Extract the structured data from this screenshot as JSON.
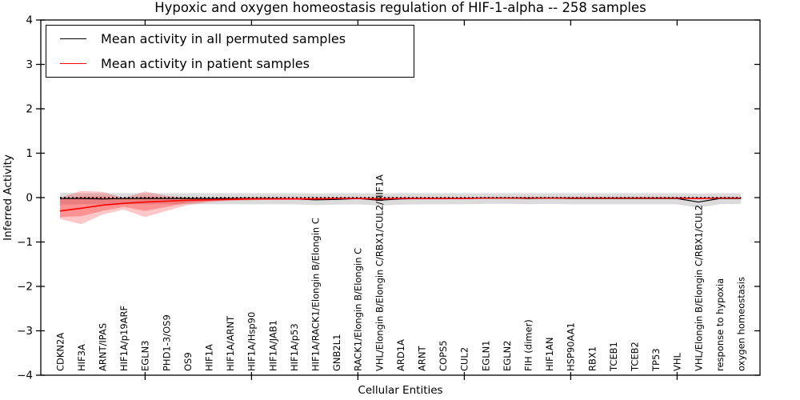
{
  "title": "Hypoxic and oxygen homeostasis regulation of HIF-1-alpha -- 258 samples",
  "axes": {
    "xlabel": "Cellular Entities",
    "ylabel": "Inferred Activity",
    "ytick_labels": [
      "4",
      "3",
      "2",
      "1",
      "0",
      "−1",
      "−2",
      "−3",
      "−4"
    ],
    "ytick_values": [
      4,
      3,
      2,
      1,
      0,
      -1,
      -2,
      -3,
      -4
    ]
  },
  "legend": {
    "entries": [
      {
        "label": "Mean activity in all permuted samples",
        "color": "#000000"
      },
      {
        "label": "Mean activity in patient samples",
        "color": "#ff0000"
      }
    ]
  },
  "chart_data": {
    "type": "line",
    "title": "Hypoxic and oxygen homeostasis regulation of HIF-1-alpha -- 258 samples",
    "xlabel": "Cellular Entities",
    "ylabel": "Inferred Activity",
    "ylim": [
      -4,
      4
    ],
    "grid": false,
    "legend_position": "upper left",
    "categories": [
      "CDKN2A",
      "HIF3A",
      "ARNT/IPAS",
      "HIF1A/p19ARF",
      "EGLN3",
      "PHD1-3/OS9",
      "OS9",
      "HIF1A",
      "HIF1A/ARNT",
      "HIF1A/Hsp90",
      "HIF1A/JAB1",
      "HIF1A/p53",
      "HIF1A/RACK1/Elongin B/Elongin C",
      "GNB2L1",
      "RACK1/Elongin B/Elongin C",
      "VHL/Elongin B/Elongin C/RBX1/CUL2/HIF1A",
      "ARD1A",
      "ARNT",
      "COPS5",
      "CUL2",
      "EGLN1",
      "EGLN2",
      "FIH (dimer)",
      "HIF1AN",
      "HSP90AA1",
      "RBX1",
      "TCEB1",
      "TCEB2",
      "TP53",
      "VHL",
      "VHL/Elongin B/Elongin C/RBX1/CUL2",
      "response to hypoxia",
      "oxygen homeostasis"
    ],
    "x_major_tick_indices": [
      4,
      9,
      14,
      19,
      24,
      29
    ],
    "zero_line": {
      "y": 0,
      "style": "dotted",
      "color": "#000000"
    },
    "series": [
      {
        "name": "Mean activity in all permuted samples",
        "color": "#000000",
        "values": [
          -0.02,
          -0.02,
          -0.03,
          -0.02,
          -0.02,
          -0.02,
          -0.02,
          -0.02,
          -0.02,
          -0.02,
          -0.02,
          -0.03,
          -0.05,
          -0.04,
          -0.02,
          -0.06,
          -0.03,
          -0.02,
          -0.02,
          -0.02,
          -0.01,
          -0.01,
          -0.02,
          -0.01,
          -0.02,
          -0.02,
          -0.02,
          -0.02,
          -0.02,
          -0.02,
          -0.1,
          -0.02,
          -0.02
        ]
      },
      {
        "name": "Mean activity in patient samples",
        "color": "#ff0000",
        "values": [
          -0.3,
          -0.24,
          -0.17,
          -0.13,
          -0.1,
          -0.08,
          -0.06,
          -0.05,
          -0.04,
          -0.03,
          -0.03,
          -0.03,
          -0.03,
          -0.02,
          -0.02,
          -0.03,
          -0.02,
          -0.02,
          -0.02,
          -0.02,
          -0.01,
          -0.01,
          -0.01,
          -0.01,
          -0.01,
          -0.01,
          -0.01,
          -0.01,
          -0.01,
          -0.01,
          -0.02,
          -0.01,
          -0.01
        ]
      }
    ],
    "bands": [
      {
        "name": "permuted-samples-range",
        "color": "rgba(125,125,125,0.28)",
        "upper": [
          0.11,
          0.1,
          0.1,
          0.1,
          0.1,
          0.1,
          0.1,
          0.1,
          0.1,
          0.1,
          0.1,
          0.1,
          0.09,
          0.1,
          0.1,
          0.09,
          0.1,
          0.1,
          0.1,
          0.1,
          0.1,
          0.1,
          0.1,
          0.1,
          0.1,
          0.1,
          0.1,
          0.1,
          0.1,
          0.1,
          0.09,
          0.1,
          0.1
        ],
        "lower": [
          -0.16,
          -0.15,
          -0.15,
          -0.15,
          -0.15,
          -0.15,
          -0.15,
          -0.15,
          -0.15,
          -0.15,
          -0.15,
          -0.15,
          -0.17,
          -0.16,
          -0.15,
          -0.18,
          -0.16,
          -0.15,
          -0.15,
          -0.15,
          -0.14,
          -0.14,
          -0.15,
          -0.14,
          -0.15,
          -0.15,
          -0.15,
          -0.15,
          -0.15,
          -0.15,
          -0.23,
          -0.15,
          -0.14
        ]
      },
      {
        "name": "patient-samples-range-outer",
        "color": "rgba(255,0,0,0.22)",
        "upper": [
          0.0,
          0.15,
          0.13,
          -0.01,
          0.14,
          0.04,
          0.0,
          -0.01,
          0.0,
          0.01,
          0.01,
          0.01,
          0.01,
          0.01,
          0.01,
          0.01,
          0.01,
          0.01,
          0.01,
          0.01,
          0.01,
          0.01,
          0.01,
          0.01,
          0.01,
          0.01,
          0.01,
          0.01,
          0.01,
          0.01,
          0.01,
          0.01,
          0.01
        ],
        "lower": [
          -0.48,
          -0.6,
          -0.38,
          -0.27,
          -0.44,
          -0.3,
          -0.17,
          -0.1,
          -0.07,
          -0.06,
          -0.05,
          -0.05,
          -0.05,
          -0.04,
          -0.04,
          -0.05,
          -0.04,
          -0.04,
          -0.04,
          -0.03,
          -0.03,
          -0.03,
          -0.03,
          -0.03,
          -0.03,
          -0.03,
          -0.03,
          -0.03,
          -0.03,
          -0.03,
          -0.04,
          -0.03,
          -0.03
        ]
      },
      {
        "name": "patient-samples-range-inner",
        "color": "rgba(255,0,0,0.26)",
        "upper": [
          -0.04,
          0.02,
          0.02,
          -0.03,
          0.02,
          -0.01,
          -0.02,
          -0.02,
          -0.01,
          -0.01,
          -0.01,
          -0.01,
          -0.01,
          -0.01,
          -0.01,
          -0.01,
          -0.01,
          -0.01,
          -0.01,
          -0.01,
          0.0,
          0.0,
          0.0,
          0.0,
          0.0,
          0.0,
          0.0,
          0.0,
          0.0,
          0.0,
          0.0,
          0.0,
          0.0
        ],
        "lower": [
          -0.44,
          -0.42,
          -0.3,
          -0.21,
          -0.3,
          -0.21,
          -0.12,
          -0.08,
          -0.06,
          -0.05,
          -0.04,
          -0.04,
          -0.04,
          -0.03,
          -0.03,
          -0.04,
          -0.03,
          -0.03,
          -0.03,
          -0.03,
          -0.02,
          -0.02,
          -0.02,
          -0.02,
          -0.02,
          -0.02,
          -0.02,
          -0.02,
          -0.02,
          -0.02,
          -0.03,
          -0.02,
          -0.02
        ]
      }
    ]
  }
}
